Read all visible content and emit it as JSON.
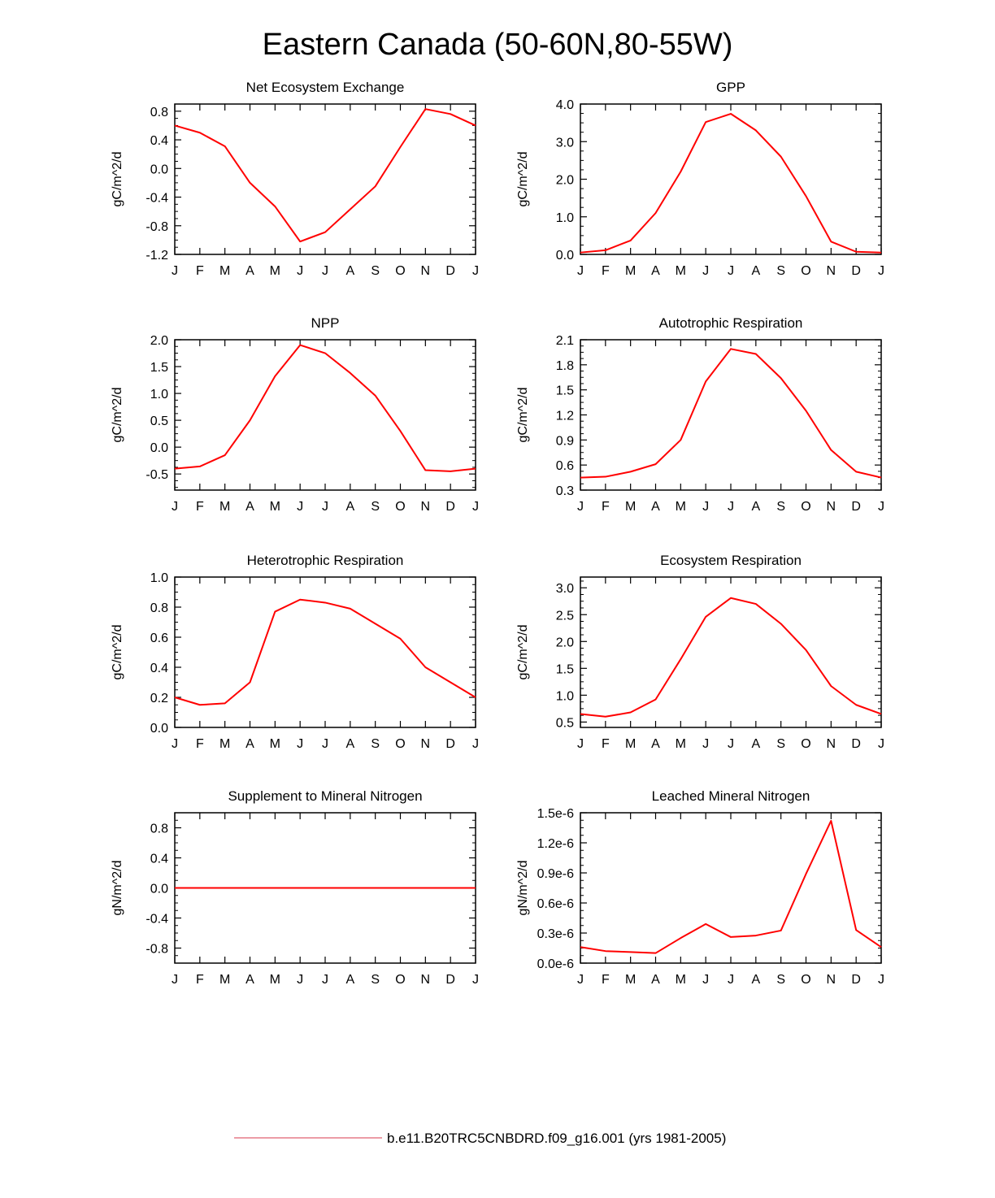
{
  "figure": {
    "title": "Eastern Canada (50-60N,80-55W)",
    "line_color": "#ff0000",
    "legend": {
      "label": "b.e11.B20TRC5CNBDRD.f09_g16.001 (yrs 1981-2005)",
      "placement": "bottom-center",
      "line_color": "#e06070"
    }
  },
  "chart_data": [
    {
      "type": "line",
      "title": "Net Ecosystem Exchange",
      "ylabel": "gC/m^2/d",
      "x": [
        "J",
        "F",
        "M",
        "A",
        "M",
        "J",
        "J",
        "A",
        "S",
        "O",
        "N",
        "D",
        "J"
      ],
      "ylim": [
        -1.2,
        0.9
      ],
      "yticks": [
        -1.2,
        -0.8,
        -0.4,
        0.0,
        0.4,
        0.8
      ],
      "ytick_labels": [
        "-1.2",
        "-0.8",
        "-0.4",
        "0.0",
        "0.4",
        "0.8"
      ],
      "values": [
        0.6,
        0.5,
        0.31,
        -0.2,
        -0.53,
        -1.02,
        -0.89,
        -0.57,
        -0.25,
        0.3,
        0.83,
        0.76,
        0.6
      ]
    },
    {
      "type": "line",
      "title": "GPP",
      "ylabel": "gC/m^2/d",
      "x": [
        "J",
        "F",
        "M",
        "A",
        "M",
        "J",
        "J",
        "A",
        "S",
        "O",
        "N",
        "D",
        "J"
      ],
      "ylim": [
        0.0,
        4.0
      ],
      "yticks": [
        0.0,
        1.0,
        2.0,
        3.0,
        4.0
      ],
      "ytick_labels": [
        "0.0",
        "1.0",
        "2.0",
        "3.0",
        "4.0"
      ],
      "values": [
        0.05,
        0.11,
        0.37,
        1.1,
        2.2,
        3.52,
        3.74,
        3.3,
        2.6,
        1.55,
        0.34,
        0.07,
        0.05
      ]
    },
    {
      "type": "line",
      "title": "NPP",
      "ylabel": "gC/m^2/d",
      "x": [
        "J",
        "F",
        "M",
        "A",
        "M",
        "J",
        "J",
        "A",
        "S",
        "O",
        "N",
        "D",
        "J"
      ],
      "ylim": [
        -0.8,
        2.0
      ],
      "yticks": [
        -0.5,
        0.0,
        0.5,
        1.0,
        1.5,
        2.0
      ],
      "ytick_labels": [
        "-0.5",
        "0.0",
        "0.5",
        "1.0",
        "1.5",
        "2.0"
      ],
      "values": [
        -0.4,
        -0.36,
        -0.15,
        0.5,
        1.32,
        1.9,
        1.75,
        1.38,
        0.96,
        0.3,
        -0.43,
        -0.45,
        -0.4
      ]
    },
    {
      "type": "line",
      "title": "Autotrophic Respiration",
      "ylabel": "gC/m^2/d",
      "x": [
        "J",
        "F",
        "M",
        "A",
        "M",
        "J",
        "J",
        "A",
        "S",
        "O",
        "N",
        "D",
        "J"
      ],
      "ylim": [
        0.3,
        2.1
      ],
      "yticks": [
        0.3,
        0.6,
        0.9,
        1.2,
        1.5,
        1.8,
        2.1
      ],
      "ytick_labels": [
        "0.3",
        "0.6",
        "0.9",
        "1.2",
        "1.5",
        "1.8",
        "2.1"
      ],
      "values": [
        0.45,
        0.46,
        0.52,
        0.61,
        0.9,
        1.6,
        1.99,
        1.93,
        1.64,
        1.25,
        0.78,
        0.52,
        0.45
      ]
    },
    {
      "type": "line",
      "title": "Heterotrophic Respiration",
      "ylabel": "gC/m^2/d",
      "x": [
        "J",
        "F",
        "M",
        "A",
        "M",
        "J",
        "J",
        "A",
        "S",
        "O",
        "N",
        "D",
        "J"
      ],
      "ylim": [
        0.0,
        1.0
      ],
      "yticks": [
        0.0,
        0.2,
        0.4,
        0.6,
        0.8,
        1.0
      ],
      "ytick_labels": [
        "0.0",
        "0.2",
        "0.4",
        "0.6",
        "0.8",
        "1.0"
      ],
      "values": [
        0.2,
        0.15,
        0.16,
        0.3,
        0.77,
        0.85,
        0.83,
        0.79,
        0.69,
        0.59,
        0.4,
        0.3,
        0.2
      ]
    },
    {
      "type": "line",
      "title": "Ecosystem Respiration",
      "ylabel": "gC/m^2/d",
      "x": [
        "J",
        "F",
        "M",
        "A",
        "M",
        "J",
        "J",
        "A",
        "S",
        "O",
        "N",
        "D",
        "J"
      ],
      "ylim": [
        0.4,
        3.2
      ],
      "yticks": [
        0.5,
        1.0,
        1.5,
        2.0,
        2.5,
        3.0
      ],
      "ytick_labels": [
        "0.5",
        "1.0",
        "1.5",
        "2.0",
        "2.5",
        "3.0"
      ],
      "values": [
        0.65,
        0.6,
        0.68,
        0.92,
        1.67,
        2.46,
        2.81,
        2.7,
        2.33,
        1.84,
        1.17,
        0.82,
        0.65
      ]
    },
    {
      "type": "line",
      "title": "Supplement to Mineral Nitrogen",
      "ylabel": "gN/m^2/d",
      "x": [
        "J",
        "F",
        "M",
        "A",
        "M",
        "J",
        "J",
        "A",
        "S",
        "O",
        "N",
        "D",
        "J"
      ],
      "ylim": [
        -1.0,
        1.0
      ],
      "yticks": [
        -0.8,
        -0.4,
        0.0,
        0.4,
        0.8
      ],
      "ytick_labels": [
        "-0.8",
        "-0.4",
        "0.0",
        "0.4",
        "0.8"
      ],
      "values": [
        0,
        0,
        0,
        0,
        0,
        0,
        0,
        0,
        0,
        0,
        0,
        0,
        0
      ]
    },
    {
      "type": "line",
      "title": "Leached Mineral Nitrogen",
      "ylabel": "gN/m^2/d",
      "x": [
        "J",
        "F",
        "M",
        "A",
        "M",
        "J",
        "J",
        "A",
        "S",
        "O",
        "N",
        "D",
        "J"
      ],
      "ylim": [
        0.0,
        1.5e-06
      ],
      "yticks": [
        0.0,
        3e-07,
        6e-07,
        9e-07,
        1.2e-06,
        1.5e-06
      ],
      "ytick_labels": [
        "0.0e-6",
        "0.3e-6",
        "0.6e-6",
        "0.9e-6",
        "1.2e-6",
        "1.5e-6"
      ],
      "values": [
        1.6e-07,
        1.2e-07,
        1.1e-07,
        1e-07,
        2.5e-07,
        3.9e-07,
        2.6e-07,
        2.75e-07,
        3.25e-07,
        8.9e-07,
        1.42e-06,
        3.3e-07,
        1.6e-07
      ]
    }
  ]
}
